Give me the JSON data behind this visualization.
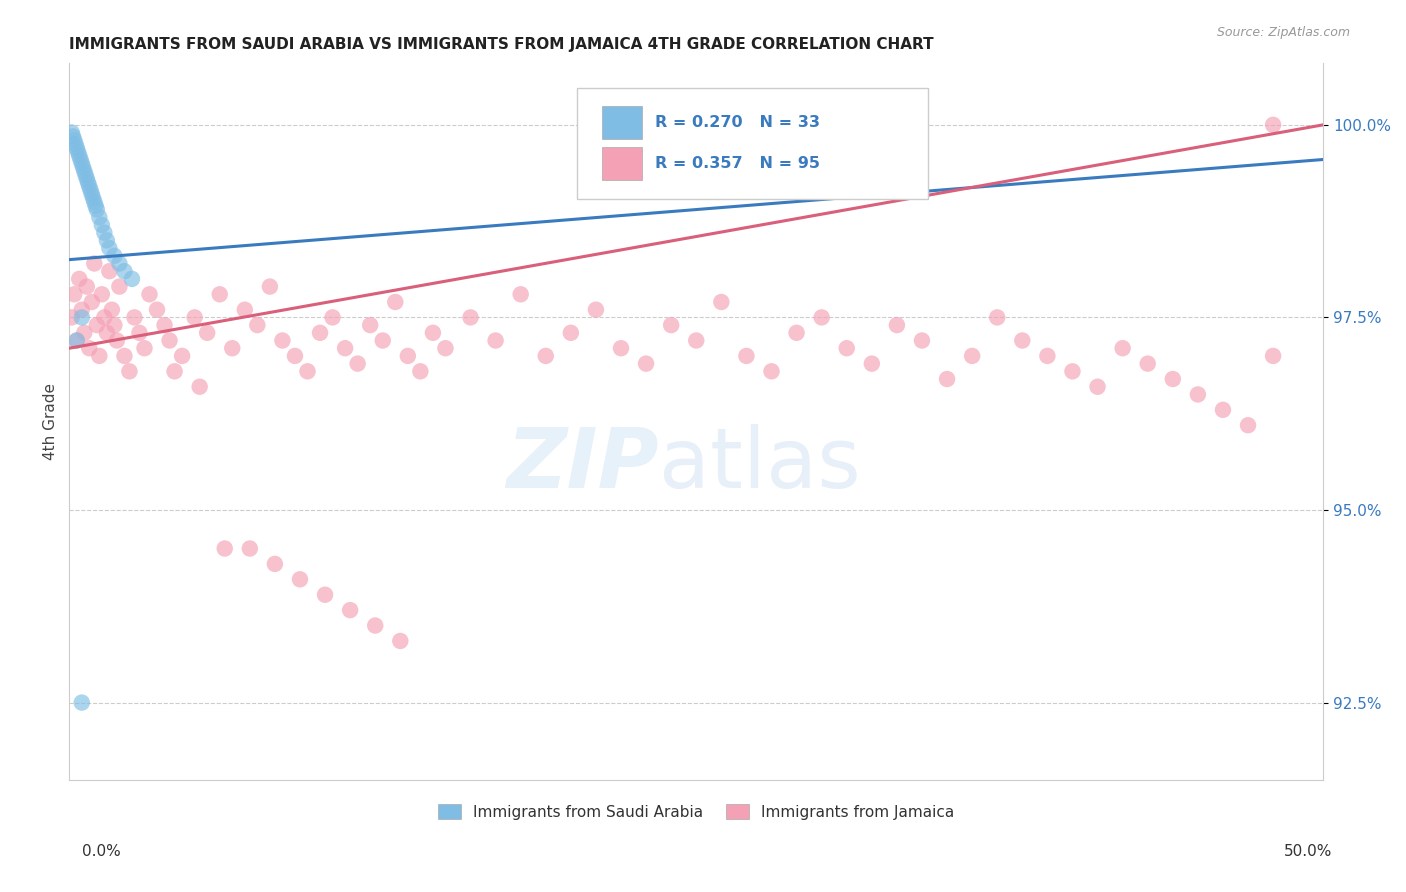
{
  "title": "IMMIGRANTS FROM SAUDI ARABIA VS IMMIGRANTS FROM JAMAICA 4TH GRADE CORRELATION CHART",
  "source": "Source: ZipAtlas.com",
  "ylabel": "4th Grade",
  "xlim": [
    0.0,
    50.0
  ],
  "ylim": [
    91.5,
    100.8
  ],
  "yticks": [
    92.5,
    95.0,
    97.5,
    100.0
  ],
  "ytick_labels": [
    "92.5%",
    "95.0%",
    "97.5%",
    "100.0%"
  ],
  "legend_R_blue": "R = 0.270",
  "legend_N_blue": "N = 33",
  "legend_R_pink": "R = 0.357",
  "legend_N_pink": "N = 95",
  "legend_label_blue": "Immigrants from Saudi Arabia",
  "legend_label_pink": "Immigrants from Jamaica",
  "color_blue": "#7fbde4",
  "color_pink": "#f4a0b5",
  "color_blue_line": "#3a7bbf",
  "color_pink_line": "#d95f7a",
  "color_text_blue": "#3a7bbf",
  "blue_line_x": [
    0.0,
    50.0
  ],
  "blue_line_y": [
    98.25,
    99.55
  ],
  "pink_line_x": [
    0.0,
    50.0
  ],
  "pink_line_y": [
    97.1,
    100.0
  ],
  "saudi_x": [
    0.2,
    0.3,
    0.4,
    0.5,
    0.6,
    0.7,
    0.8,
    0.9,
    1.0,
    1.1,
    1.2,
    1.3,
    1.4,
    1.5,
    1.6,
    1.8,
    2.0,
    2.2,
    2.5,
    0.1,
    0.15,
    0.25,
    0.35,
    0.45,
    0.55,
    0.65,
    0.75,
    0.85,
    0.95,
    1.05,
    0.5,
    0.3,
    0.5
  ],
  "saudi_y": [
    99.8,
    99.7,
    99.6,
    99.5,
    99.4,
    99.3,
    99.2,
    99.1,
    99.0,
    98.9,
    98.8,
    98.7,
    98.6,
    98.5,
    98.4,
    98.3,
    98.2,
    98.1,
    98.0,
    99.9,
    99.85,
    99.75,
    99.65,
    99.55,
    99.45,
    99.35,
    99.25,
    99.15,
    99.05,
    98.95,
    97.5,
    97.2,
    92.5
  ],
  "jamaica_x": [
    0.1,
    0.2,
    0.3,
    0.4,
    0.5,
    0.6,
    0.7,
    0.8,
    0.9,
    1.0,
    1.1,
    1.2,
    1.3,
    1.4,
    1.5,
    1.6,
    1.7,
    1.8,
    1.9,
    2.0,
    2.2,
    2.4,
    2.6,
    2.8,
    3.0,
    3.2,
    3.5,
    3.8,
    4.0,
    4.5,
    5.0,
    5.5,
    6.0,
    6.5,
    7.0,
    7.5,
    8.0,
    8.5,
    9.0,
    9.5,
    10.0,
    10.5,
    11.0,
    11.5,
    12.0,
    12.5,
    13.0,
    13.5,
    14.0,
    14.5,
    15.0,
    16.0,
    17.0,
    18.0,
    19.0,
    20.0,
    21.0,
    22.0,
    23.0,
    24.0,
    25.0,
    26.0,
    27.0,
    28.0,
    29.0,
    30.0,
    31.0,
    32.0,
    33.0,
    34.0,
    35.0,
    36.0,
    37.0,
    38.0,
    39.0,
    40.0,
    41.0,
    42.0,
    43.0,
    44.0,
    45.0,
    46.0,
    47.0,
    48.0,
    4.2,
    5.2,
    6.2,
    7.2,
    8.2,
    9.2,
    10.2,
    11.2,
    12.2,
    13.2,
    48.0
  ],
  "jamaica_y": [
    97.5,
    97.8,
    97.2,
    98.0,
    97.6,
    97.3,
    97.9,
    97.1,
    97.7,
    98.2,
    97.4,
    97.0,
    97.8,
    97.5,
    97.3,
    98.1,
    97.6,
    97.4,
    97.2,
    97.9,
    97.0,
    96.8,
    97.5,
    97.3,
    97.1,
    97.8,
    97.6,
    97.4,
    97.2,
    97.0,
    97.5,
    97.3,
    97.8,
    97.1,
    97.6,
    97.4,
    97.9,
    97.2,
    97.0,
    96.8,
    97.3,
    97.5,
    97.1,
    96.9,
    97.4,
    97.2,
    97.7,
    97.0,
    96.8,
    97.3,
    97.1,
    97.5,
    97.2,
    97.8,
    97.0,
    97.3,
    97.6,
    97.1,
    96.9,
    97.4,
    97.2,
    97.7,
    97.0,
    96.8,
    97.3,
    97.5,
    97.1,
    96.9,
    97.4,
    97.2,
    96.7,
    97.0,
    97.5,
    97.2,
    97.0,
    96.8,
    96.6,
    97.1,
    96.9,
    96.7,
    96.5,
    96.3,
    96.1,
    97.0,
    96.8,
    96.6,
    94.5,
    94.5,
    94.3,
    94.1,
    93.9,
    93.7,
    93.5,
    93.3,
    100.0
  ]
}
